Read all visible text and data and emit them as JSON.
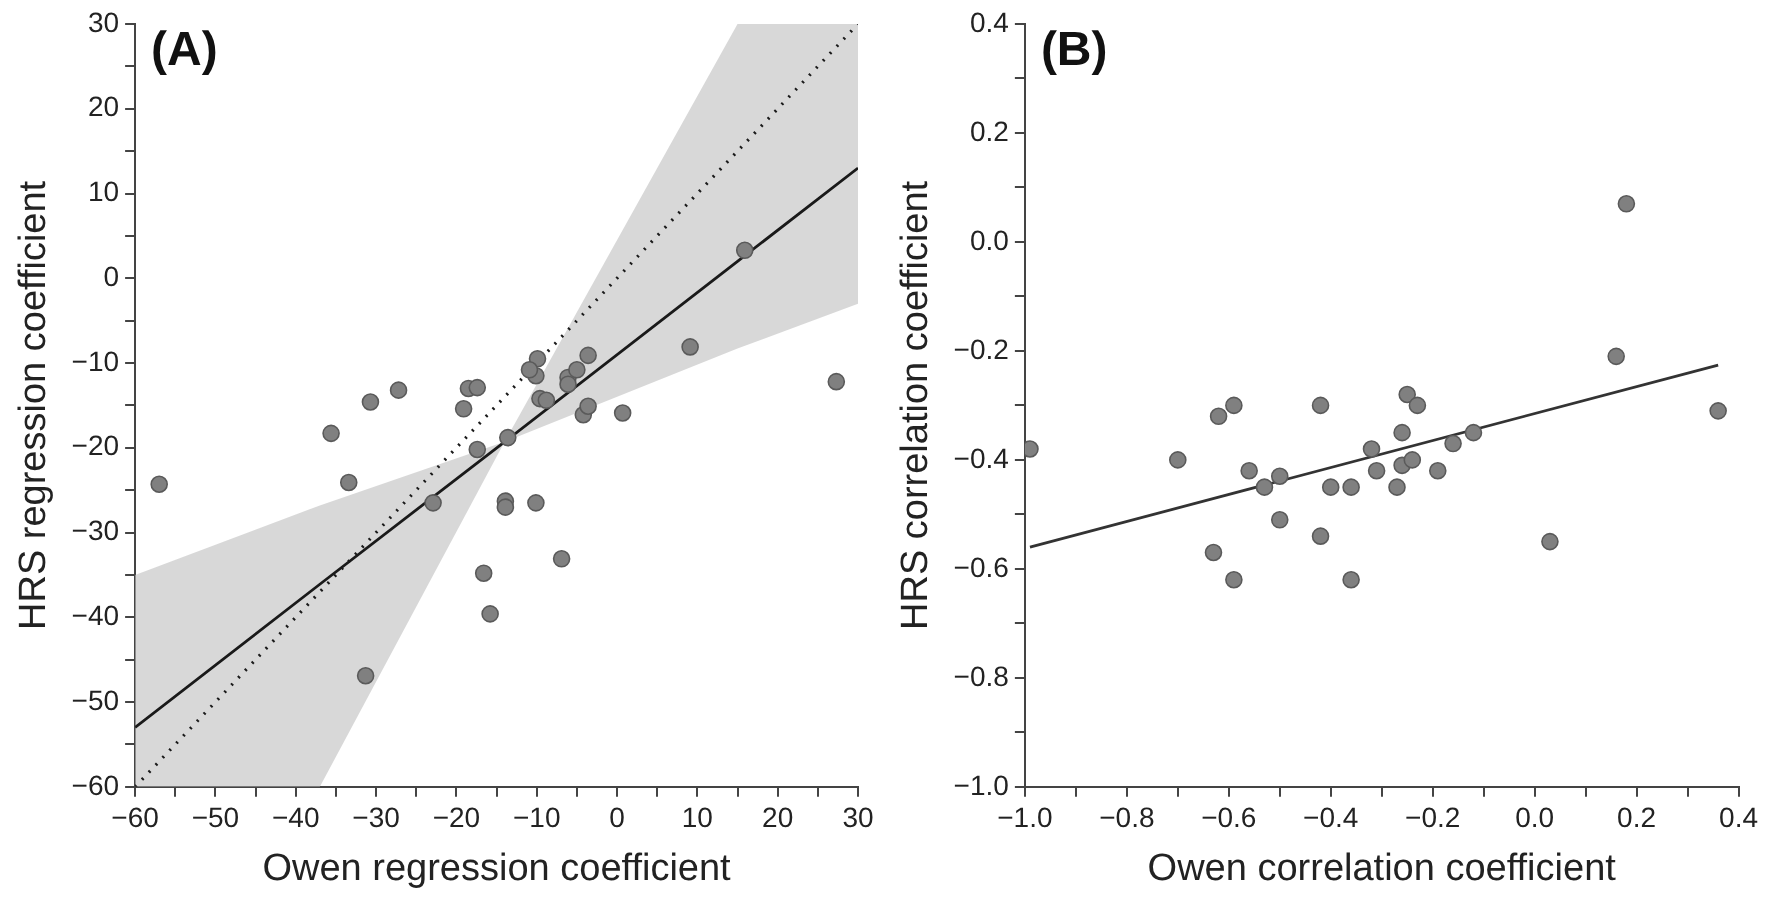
{
  "chart_data": [
    {
      "type": "scatter",
      "xlabel": "Owen regression coefficient",
      "ylabel": "HRS regression coefficient",
      "annotations": [
        "(A)"
      ],
      "marker": "circle",
      "grid": false,
      "xlim": [
        -60,
        30
      ],
      "ylim": [
        -60,
        30
      ],
      "xticks": [
        {
          "value": -60,
          "label": "−60"
        },
        {
          "value": -55,
          "label": null
        },
        {
          "value": -50,
          "label": "−50"
        },
        {
          "value": -45,
          "label": null
        },
        {
          "value": -40,
          "label": "−40"
        },
        {
          "value": -35,
          "label": null
        },
        {
          "value": -30,
          "label": "−30"
        },
        {
          "value": -25,
          "label": null
        },
        {
          "value": -20,
          "label": "−20"
        },
        {
          "value": -15,
          "label": null
        },
        {
          "value": -10,
          "label": "−10"
        },
        {
          "value": -5,
          "label": null
        },
        0,
        {
          "value": 5,
          "label": null
        },
        10,
        {
          "value": 15,
          "label": null
        },
        20,
        {
          "value": 25,
          "label": null
        },
        30
      ],
      "yticks": [
        {
          "value": -60,
          "label": "−60"
        },
        {
          "value": -55,
          "label": null
        },
        {
          "value": -50,
          "label": "−50"
        },
        {
          "value": -45,
          "label": null
        },
        {
          "value": -40,
          "label": "−40"
        },
        {
          "value": -35,
          "label": null
        },
        {
          "value": -30,
          "label": "−30"
        },
        {
          "value": -25,
          "label": null
        },
        {
          "value": -20,
          "label": "−20"
        },
        {
          "value": -15,
          "label": null
        },
        {
          "value": -10,
          "label": "−10"
        },
        {
          "value": -5,
          "label": null
        },
        0,
        {
          "value": 5,
          "label": null
        },
        10,
        {
          "value": 15,
          "label": null
        },
        20,
        {
          "value": 25,
          "label": null
        },
        30
      ],
      "series": [
        {
          "type": "line",
          "color": "#1a1a1a",
          "line_style": "solid",
          "marker": "none",
          "x": [
            -60,
            -37,
            -14,
            15,
            30
          ],
          "values": [
            -53,
            -36.1,
            -19.3,
            2,
            13
          ],
          "lower": [
            -60,
            -60,
            -19.3,
            -8.3,
            -3
          ],
          "upper": [
            -35,
            -26.8,
            -19.3,
            30,
            30
          ]
        },
        {
          "type": "line",
          "color": "#1a1a1a",
          "line_style": "dotted",
          "marker": "none",
          "x": [
            -60,
            30
          ],
          "values": [
            -60,
            30
          ]
        },
        {
          "color": "#808080",
          "x": [
            -57.0,
            -35.6,
            -33.4,
            -30.7,
            -27.2,
            -31.3,
            -18.5,
            -19.1,
            -17.4,
            -17.4,
            -22.9,
            -13.6,
            -16.6,
            -15.8,
            -13.9,
            -13.9,
            -10.1,
            -6.9,
            -10.1,
            -9.9,
            -10.9,
            -9.6,
            -8.8,
            -6.1,
            -6.1,
            -5.0,
            -3.6,
            -4.2,
            -3.6,
            0.7,
            9.1,
            15.9,
            27.3
          ],
          "values": [
            -24.3,
            -18.3,
            -24.1,
            -14.6,
            -13.2,
            -46.9,
            -13.0,
            -15.4,
            -20.2,
            -12.9,
            -26.5,
            -18.8,
            -34.8,
            -39.6,
            -26.3,
            -27.0,
            -26.5,
            -33.1,
            -11.5,
            -9.5,
            -10.8,
            -14.2,
            -14.4,
            -11.7,
            -12.5,
            -10.8,
            -9.1,
            -16.1,
            -15.1,
            -15.9,
            -8.1,
            3.3,
            -12.2
          ]
        }
      ]
    },
    {
      "type": "scatter",
      "xlabel": "Owen correlation coefficient",
      "ylabel": "HRS correlation coefficient",
      "annotations": [
        "(B)"
      ],
      "marker": "circle",
      "grid": false,
      "xlim": [
        -1.0,
        0.4
      ],
      "ylim": [
        -1.0,
        0.4
      ],
      "xticks": [
        {
          "value": -1.0,
          "label": "−1.0"
        },
        {
          "value": -0.9,
          "label": null
        },
        {
          "value": -0.8,
          "label": "−0.8"
        },
        {
          "value": -0.7,
          "label": null
        },
        {
          "value": -0.6,
          "label": "−0.6"
        },
        {
          "value": -0.5,
          "label": null
        },
        {
          "value": -0.4,
          "label": "−0.4"
        },
        {
          "value": -0.3,
          "label": null
        },
        {
          "value": -0.2,
          "label": "−0.2"
        },
        {
          "value": -0.1,
          "label": null
        },
        {
          "value": 0,
          "label": "0.0"
        },
        {
          "value": 0.1,
          "label": null
        },
        {
          "value": 0.2,
          "label": "0.2"
        },
        {
          "value": 0.3,
          "label": null
        },
        {
          "value": 0.4,
          "label": "0.4"
        }
      ],
      "yticks": [
        {
          "value": -1.0,
          "label": "−1.0"
        },
        {
          "value": -0.9,
          "label": null
        },
        {
          "value": -0.8,
          "label": "−0.8"
        },
        {
          "value": -0.7,
          "label": null
        },
        {
          "value": -0.6,
          "label": "−0.6"
        },
        {
          "value": -0.5,
          "label": null
        },
        {
          "value": -0.4,
          "label": "−0.4"
        },
        {
          "value": -0.3,
          "label": null
        },
        {
          "value": -0.2,
          "label": "−0.2"
        },
        {
          "value": -0.1,
          "label": null
        },
        {
          "value": 0,
          "label": "0.0"
        },
        {
          "value": 0.1,
          "label": null
        },
        {
          "value": 0.2,
          "label": "0.2"
        },
        {
          "value": 0.3,
          "label": null
        },
        {
          "value": 0.4,
          "label": "0.4"
        }
      ],
      "series": [
        {
          "type": "line",
          "color": "#333333",
          "line_style": "solid",
          "marker": "none",
          "x": [
            -0.99,
            0.36
          ],
          "values": [
            -0.56,
            -0.226
          ]
        },
        {
          "color": "#808080",
          "x": [
            -0.99,
            -0.7,
            -0.62,
            -0.59,
            -0.56,
            -0.53,
            -0.5,
            -0.5,
            -0.63,
            -0.59,
            -0.42,
            -0.42,
            -0.4,
            -0.36,
            -0.36,
            -0.32,
            -0.31,
            -0.27,
            -0.26,
            -0.26,
            -0.25,
            -0.24,
            -0.23,
            -0.19,
            -0.16,
            -0.12,
            0.03,
            0.16,
            0.18,
            0.36
          ],
          "values": [
            -0.38,
            -0.4,
            -0.32,
            -0.3,
            -0.42,
            -0.45,
            -0.43,
            -0.51,
            -0.57,
            -0.62,
            -0.3,
            -0.54,
            -0.45,
            -0.45,
            -0.62,
            -0.38,
            -0.42,
            -0.45,
            -0.35,
            -0.41,
            -0.28,
            -0.4,
            -0.3,
            -0.42,
            -0.37,
            -0.35,
            -0.55,
            -0.21,
            0.07,
            -0.31
          ]
        }
      ]
    }
  ]
}
